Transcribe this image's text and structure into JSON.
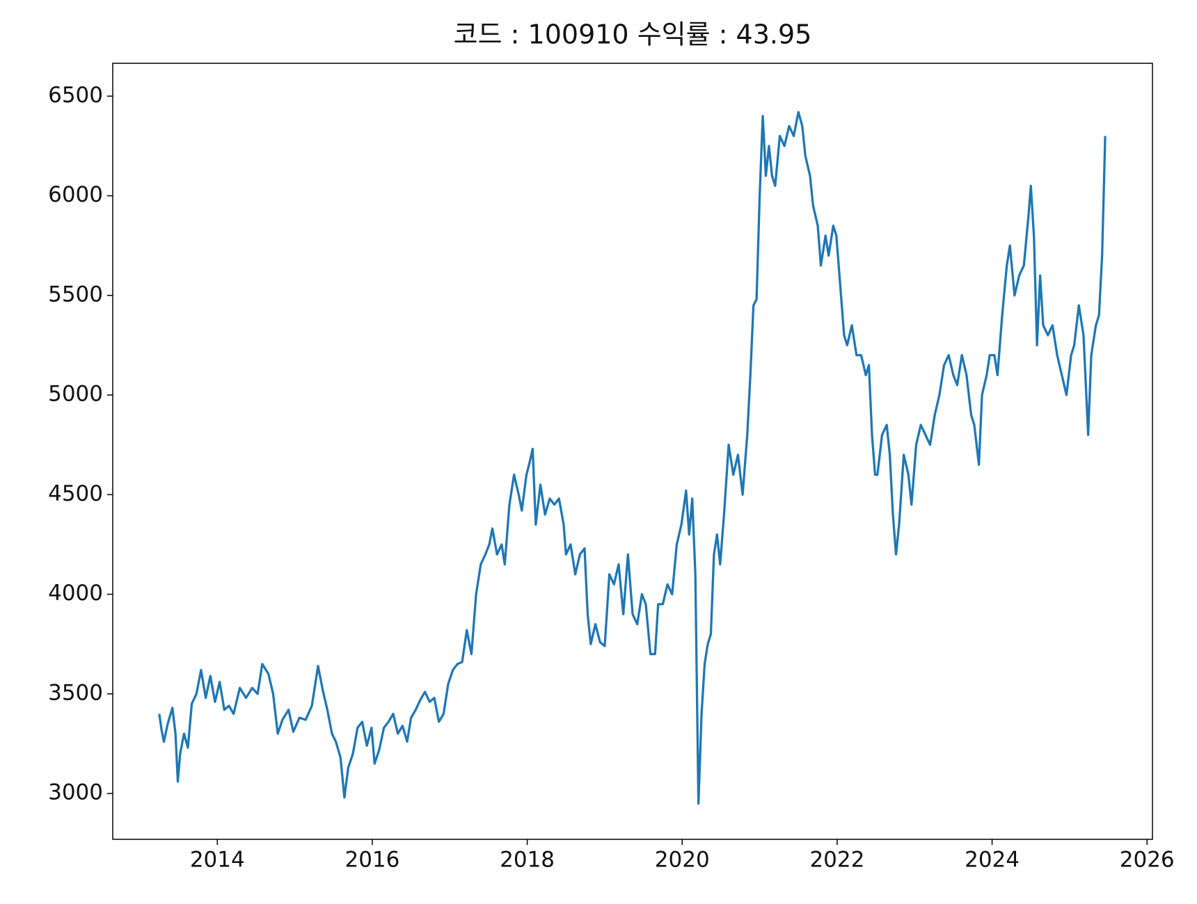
{
  "chart_data": {
    "type": "line",
    "title": "코드 : 100910 수익률 : 43.95",
    "color": "#1f77b4",
    "xlim": [
      2012.65,
      2026.07
    ],
    "ylim": [
      2770,
      6665
    ],
    "xticks": [
      2014,
      2016,
      2018,
      2020,
      2022,
      2024,
      2026
    ],
    "yticks": [
      3000,
      3500,
      4000,
      4500,
      5000,
      5500,
      6000,
      6500
    ],
    "x": [
      2013.25,
      2013.28,
      2013.31,
      2013.36,
      2013.42,
      2013.46,
      2013.49,
      2013.52,
      2013.57,
      2013.62,
      2013.67,
      2013.73,
      2013.79,
      2013.85,
      2013.91,
      2013.97,
      2014.03,
      2014.09,
      2014.15,
      2014.21,
      2014.29,
      2014.37,
      2014.45,
      2014.52,
      2014.58,
      2014.66,
      2014.72,
      2014.78,
      2014.84,
      2014.92,
      2014.98,
      2015.06,
      2015.14,
      2015.22,
      2015.3,
      2015.36,
      2015.42,
      2015.48,
      2015.53,
      2015.59,
      2015.64,
      2015.69,
      2015.75,
      2015.81,
      2015.87,
      2015.93,
      2015.99,
      2016.03,
      2016.09,
      2016.15,
      2016.21,
      2016.27,
      2016.33,
      2016.39,
      2016.45,
      2016.5,
      2016.56,
      2016.62,
      2016.68,
      2016.74,
      2016.8,
      2016.86,
      2016.92,
      2016.98,
      2017.04,
      2017.1,
      2017.16,
      2017.22,
      2017.28,
      2017.34,
      2017.4,
      2017.46,
      2017.51,
      2017.55,
      2017.61,
      2017.67,
      2017.71,
      2017.77,
      2017.83,
      2017.89,
      2017.93,
      2017.99,
      2018.03,
      2018.07,
      2018.11,
      2018.17,
      2018.23,
      2018.29,
      2018.35,
      2018.41,
      2018.47,
      2018.5,
      2018.56,
      2018.62,
      2018.68,
      2018.74,
      2018.78,
      2018.82,
      2018.88,
      2018.94,
      2019.0,
      2019.06,
      2019.12,
      2019.18,
      2019.24,
      2019.3,
      2019.36,
      2019.42,
      2019.48,
      2019.53,
      2019.59,
      2019.65,
      2019.69,
      2019.75,
      2019.81,
      2019.87,
      2019.93,
      2019.99,
      2020.05,
      2020.09,
      2020.13,
      2020.17,
      2020.21,
      2020.25,
      2020.29,
      2020.33,
      2020.37,
      2020.41,
      2020.45,
      2020.49,
      2020.54,
      2020.6,
      2020.66,
      2020.72,
      2020.78,
      2020.84,
      2020.88,
      2020.92,
      2020.96,
      2021.0,
      2021.04,
      2021.08,
      2021.12,
      2021.16,
      2021.2,
      2021.26,
      2021.32,
      2021.38,
      2021.44,
      2021.5,
      2021.55,
      2021.59,
      2021.65,
      2021.69,
      2021.75,
      2021.79,
      2021.85,
      2021.89,
      2021.95,
      2021.99,
      2022.05,
      2022.09,
      2022.13,
      2022.19,
      2022.25,
      2022.31,
      2022.37,
      2022.41,
      2022.45,
      2022.49,
      2022.52,
      2022.58,
      2022.64,
      2022.68,
      2022.72,
      2022.76,
      2022.8,
      2022.86,
      2022.92,
      2022.96,
      2023.02,
      2023.08,
      2023.14,
      2023.2,
      2023.26,
      2023.32,
      2023.38,
      2023.44,
      2023.5,
      2023.55,
      2023.61,
      2023.67,
      2023.73,
      2023.77,
      2023.83,
      2023.87,
      2023.93,
      2023.97,
      2024.03,
      2024.07,
      2024.13,
      2024.19,
      2024.23,
      2024.29,
      2024.35,
      2024.41,
      2024.47,
      2024.5,
      2024.54,
      2024.58,
      2024.62,
      2024.66,
      2024.72,
      2024.78,
      2024.84,
      2024.9,
      2024.96,
      2025.02,
      2025.06,
      2025.12,
      2025.18,
      2025.24,
      2025.28,
      2025.34,
      2025.38,
      2025.42,
      2025.46
    ],
    "values": [
      3400,
      3320,
      3260,
      3350,
      3430,
      3300,
      3060,
      3200,
      3300,
      3230,
      3450,
      3500,
      3620,
      3480,
      3590,
      3460,
      3560,
      3420,
      3440,
      3400,
      3530,
      3480,
      3530,
      3500,
      3650,
      3600,
      3500,
      3300,
      3370,
      3420,
      3310,
      3380,
      3370,
      3440,
      3640,
      3520,
      3420,
      3300,
      3260,
      3180,
      2980,
      3130,
      3200,
      3330,
      3360,
      3240,
      3330,
      3150,
      3220,
      3330,
      3360,
      3400,
      3300,
      3340,
      3260,
      3380,
      3420,
      3470,
      3510,
      3460,
      3480,
      3360,
      3400,
      3550,
      3620,
      3650,
      3660,
      3820,
      3700,
      4000,
      4150,
      4200,
      4250,
      4330,
      4200,
      4250,
      4150,
      4450,
      4600,
      4500,
      4420,
      4600,
      4660,
      4730,
      4350,
      4550,
      4400,
      4480,
      4450,
      4480,
      4350,
      4200,
      4250,
      4100,
      4200,
      4230,
      3900,
      3750,
      3850,
      3760,
      3740,
      4100,
      4050,
      4150,
      3900,
      4200,
      3900,
      3850,
      4000,
      3950,
      3700,
      3700,
      3950,
      3950,
      4050,
      4000,
      4250,
      4350,
      4520,
      4300,
      4480,
      4100,
      2950,
      3400,
      3650,
      3750,
      3800,
      4200,
      4300,
      4150,
      4400,
      4750,
      4600,
      4700,
      4500,
      4800,
      5100,
      5450,
      5480,
      6000,
      6400,
      6100,
      6250,
      6100,
      6050,
      6300,
      6250,
      6350,
      6300,
      6420,
      6350,
      6200,
      6100,
      5950,
      5850,
      5650,
      5800,
      5700,
      5850,
      5800,
      5500,
      5300,
      5250,
      5350,
      5200,
      5200,
      5100,
      5150,
      4800,
      4600,
      4600,
      4800,
      4850,
      4700,
      4400,
      4200,
      4350,
      4700,
      4600,
      4450,
      4750,
      4850,
      4800,
      4750,
      4900,
      5000,
      5150,
      5200,
      5100,
      5050,
      5200,
      5100,
      4900,
      4850,
      4650,
      5000,
      5100,
      5200,
      5200,
      5100,
      5400,
      5650,
      5750,
      5500,
      5600,
      5650,
      5900,
      6050,
      5800,
      5250,
      5600,
      5350,
      5300,
      5350,
      5200,
      5100,
      5000,
      5200,
      5250,
      5450,
      5300,
      4800,
      5200,
      5350,
      5400,
      5700,
      6300
    ]
  }
}
